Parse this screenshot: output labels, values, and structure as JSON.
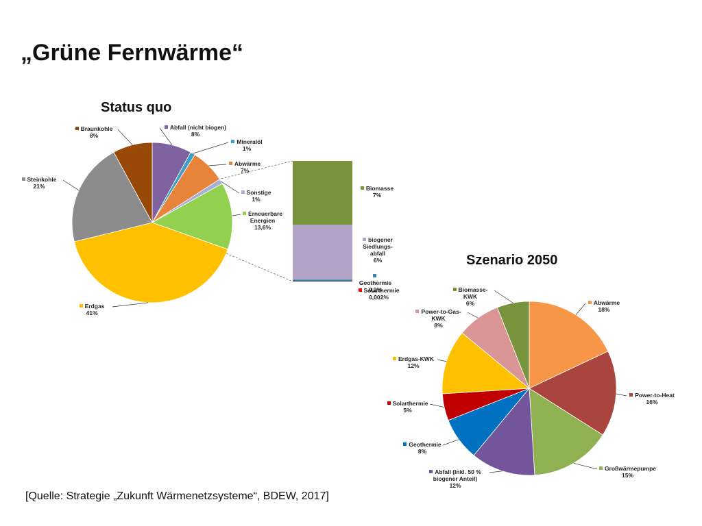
{
  "title": "„Grüne Fernwärme“",
  "source": "[Quelle: Strategie „Zukunft Wärmenetzsysteme“, BDEW, 2017]",
  "chart_data": [
    {
      "type": "pie",
      "title": "Status quo",
      "categories": [
        "Abfall (nicht biogen)",
        "Mineralöl",
        "Abwärme",
        "Sonstige",
        "Erneuerbare Energien",
        "Erdgas",
        "Steinkohle",
        "Braunkohle"
      ],
      "values": [
        8,
        1,
        7,
        1,
        13.6,
        41,
        21,
        8
      ],
      "value_labels": [
        "8%",
        "1%",
        "7%",
        "1%",
        "13,6%",
        "41%",
        "21%",
        "8%"
      ],
      "colors": [
        "#7f62a0",
        "#3f9fc6",
        "#e8833a",
        "#a9aed6",
        "#92d050",
        "#ffc000",
        "#8c8c8c",
        "#984807"
      ]
    },
    {
      "type": "bar",
      "stacked": true,
      "categories": [
        "Biomasse",
        "biogener Siedlungs-abfall",
        "Geothermie",
        "Solarthermie"
      ],
      "values": [
        7,
        6,
        0.2,
        0.002
      ],
      "value_labels": [
        "7%",
        "6%",
        "0,2%",
        "0,002%"
      ],
      "colors": [
        "#77933c",
        "#b3a2c7",
        "#31859c",
        "#ff0000"
      ]
    },
    {
      "type": "pie",
      "title": "Szenario 2050",
      "categories": [
        "Abwärme",
        "Power-to-Heat",
        "Großwärmepumpe",
        "Abfall (Inkl. 50 % biogener Anteil)",
        "Geothermie",
        "Solarthermie",
        "Erdgas-KWK",
        "Power-to-Gas-KWK",
        "Biomasse-KWK"
      ],
      "values": [
        18,
        16,
        15,
        12,
        8,
        5,
        12,
        8,
        6
      ],
      "value_labels": [
        "18%",
        "16%",
        "15%",
        "12%",
        "8%",
        "5%",
        "12%",
        "8%",
        "6%"
      ],
      "colors": [
        "#f79646",
        "#a9443f",
        "#8fb152",
        "#72559a",
        "#0070c0",
        "#c00000",
        "#ffc000",
        "#d99694",
        "#77933c"
      ]
    }
  ]
}
